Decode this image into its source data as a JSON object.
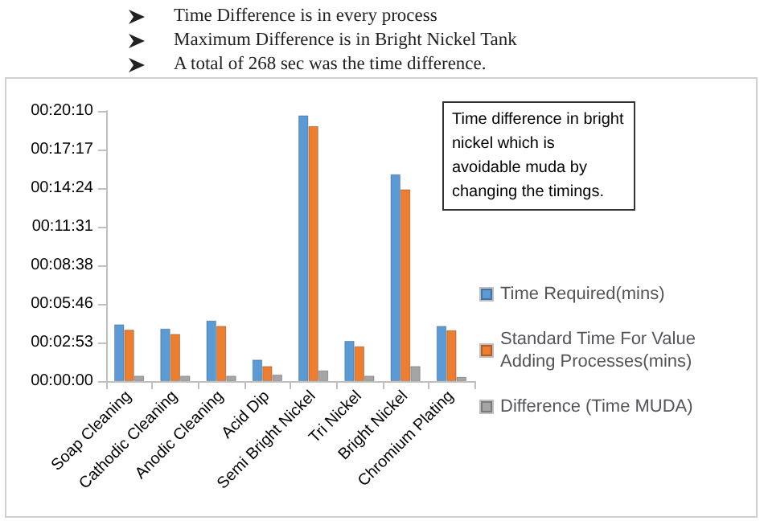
{
  "chart_data": {
    "type": "bar",
    "categories": [
      "Soap Cleaning",
      "Cathodic Cleaning",
      "Anodic Cleaning",
      "Acid Dip",
      "Semi Bright Nickel",
      "Tri Nickel",
      "Bright Nickel",
      "Chromium Plating"
    ],
    "series": [
      {
        "name": "Time Required(mins)",
        "color": "#5b9bd5",
        "values": [
          254,
          235,
          271,
          96,
          1190,
          180,
          926,
          247
        ]
      },
      {
        "name": "Standard Time For Value Adding Processes(mins)",
        "color": "#ed7d31",
        "values": [
          230,
          211,
          247,
          67,
          1142,
          156,
          859,
          228
        ]
      },
      {
        "name": "Difference (Time MUDA)",
        "color": "#a5a5a5",
        "values": [
          24,
          24,
          24,
          29,
          48,
          24,
          67,
          19
        ]
      }
    ],
    "ylim": [
      0,
      1209.6
    ],
    "yticks": [
      {
        "value": 0,
        "label": "00:00:00"
      },
      {
        "value": 172.8,
        "label": "00:02:53"
      },
      {
        "value": 345.6,
        "label": "00:05:46"
      },
      {
        "value": 518.4,
        "label": "00:08:38"
      },
      {
        "value": 691.2,
        "label": "00:11:31"
      },
      {
        "value": 864,
        "label": "00:14:24"
      },
      {
        "value": 1036.8,
        "label": "00:17:17"
      },
      {
        "value": 1209.6,
        "label": "00:20:10"
      }
    ],
    "grid": false,
    "legend": "right",
    "annotations": [
      "Time Difference is in every process",
      "Maximum Difference is in  Bright Nickel Tank",
      "A total of 268 sec was the time difference.",
      "Time difference in bright nickel which is avoidable muda by changing the timings."
    ]
  }
}
